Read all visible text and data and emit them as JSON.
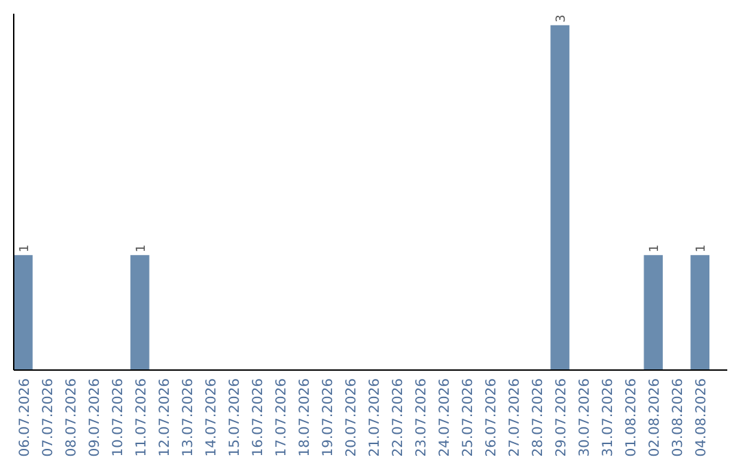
{
  "chart_data": {
    "type": "bar",
    "categories": [
      "06.07.2026",
      "07.07.2026",
      "08.07.2026",
      "09.07.2026",
      "10.07.2026",
      "11.07.2026",
      "12.07.2026",
      "13.07.2026",
      "14.07.2026",
      "15.07.2026",
      "16.07.2026",
      "17.07.2026",
      "18.07.2026",
      "19.07.2026",
      "20.07.2026",
      "21.07.2026",
      "22.07.2026",
      "23.07.2026",
      "24.07.2026",
      "25.07.2026",
      "26.07.2026",
      "27.07.2026",
      "28.07.2026",
      "29.07.2026",
      "30.07.2026",
      "31.07.2026",
      "01.08.2026",
      "02.08.2026",
      "03.08.2026",
      "04.08.2026"
    ],
    "values": [
      1,
      0,
      0,
      0,
      0,
      1,
      0,
      0,
      0,
      0,
      0,
      0,
      0,
      0,
      0,
      0,
      0,
      0,
      0,
      0,
      0,
      0,
      0,
      3,
      0,
      0,
      0,
      1,
      0,
      1
    ],
    "value_labels": [
      "1",
      null,
      null,
      null,
      null,
      "1",
      null,
      null,
      null,
      null,
      null,
      null,
      null,
      null,
      null,
      null,
      null,
      null,
      null,
      null,
      null,
      null,
      null,
      "3",
      null,
      null,
      null,
      "1",
      null,
      "1"
    ],
    "color": "#6a8caf",
    "ylim": [
      0,
      3.1
    ],
    "tick_labels": "x"
  }
}
